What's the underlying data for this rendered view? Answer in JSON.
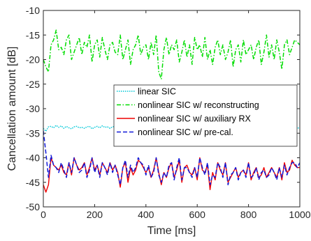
{
  "chart_data": {
    "type": "line",
    "title": "",
    "xlabel": "Time [ms]",
    "ylabel": "Cancellation amount [dB]",
    "xlim": [
      0,
      1000
    ],
    "ylim": [
      -50,
      -10
    ],
    "xticks": [
      0,
      200,
      400,
      600,
      800,
      1000
    ],
    "yticks": [
      -50,
      -45,
      -40,
      -35,
      -30,
      -25,
      -20,
      -15,
      -10
    ],
    "grid": false,
    "legend_position": "center-right",
    "sample_step_ms": 10,
    "series": [
      {
        "name": "linear SIC",
        "color": "#00c8d8",
        "dash": "dotted",
        "x_start": 0,
        "values": [
          -34.0,
          -34.6,
          -33.7,
          -33.6,
          -33.9,
          -33.4,
          -33.8,
          -33.5,
          -34.0,
          -33.6,
          -33.9,
          -34.1,
          -33.7,
          -33.6,
          -33.9,
          -33.8,
          -34.0,
          -33.7,
          -33.6,
          -34.1,
          -33.8,
          -33.6,
          -33.9,
          -33.5,
          -33.8,
          -33.7,
          -34.0,
          -33.7,
          -33.6,
          -33.9,
          -33.8,
          -33.6,
          -33.9,
          -34.1,
          -33.7,
          -33.6,
          -33.8,
          -33.9,
          -33.6,
          -33.8,
          -33.5,
          -33.9,
          -33.7,
          -33.6,
          -34.0,
          -33.7,
          -33.8,
          -33.6,
          -33.9,
          -33.7,
          -33.5,
          -33.8,
          -34.0,
          -33.7,
          -33.6,
          -33.9,
          -33.8,
          -33.6,
          -33.9,
          -34.1,
          -33.7,
          -33.6,
          -33.8,
          -33.9,
          -33.6,
          -33.8,
          -33.9,
          -33.7,
          -33.6,
          -34.0,
          -33.8,
          -33.7,
          -33.9,
          -33.6,
          -33.8,
          -34.0,
          -33.7,
          -33.9,
          -33.6,
          -33.8,
          -33.7,
          -33.9,
          -33.6,
          -34.0,
          -33.7,
          -33.8,
          -33.2,
          -33.9,
          -33.6,
          -33.8,
          -33.9,
          -33.7,
          -33.6,
          -33.9,
          -33.8,
          -33.7,
          -34.0,
          -33.6,
          -33.8,
          -33.9,
          -34.0
        ]
      },
      {
        "name": "nonlinear SIC w/ reconstructing",
        "color": "#00dd00",
        "dash": "dashdot",
        "x_start": 0,
        "values": [
          -20.0,
          -21.5,
          -22.5,
          -17.0,
          -16.0,
          -14.0,
          -18.0,
          -17.5,
          -19.0,
          -16.0,
          -15.0,
          -20.0,
          -18.5,
          -17.0,
          -15.5,
          -19.0,
          -16.5,
          -17.5,
          -15.0,
          -20.5,
          -17.0,
          -16.0,
          -19.5,
          -15.5,
          -18.0,
          -20.0,
          -17.0,
          -16.5,
          -18.5,
          -19.0,
          -15.0,
          -20.0,
          -18.0,
          -16.0,
          -21.0,
          -18.0,
          -17.0,
          -15.0,
          -19.0,
          -17.5,
          -17.0,
          -20.0,
          -16.5,
          -19.0,
          -15.0,
          -22.5,
          -24.0,
          -18.0,
          -15.5,
          -19.0,
          -17.0,
          -18.0,
          -16.0,
          -20.5,
          -18.5,
          -16.0,
          -19.5,
          -17.0,
          -21.0,
          -15.5,
          -18.0,
          -17.0,
          -19.5,
          -15.5,
          -20.0,
          -18.0,
          -21.0,
          -17.5,
          -16.0,
          -19.0,
          -17.0,
          -20.0,
          -18.5,
          -16.0,
          -21.5,
          -18.0,
          -17.0,
          -20.5,
          -16.0,
          -19.0,
          -18.0,
          -17.0,
          -20.0,
          -17.5,
          -16.0,
          -21.0,
          -18.5,
          -15.0,
          -19.5,
          -17.0,
          -20.0,
          -16.0,
          -18.5,
          -22.0,
          -17.0,
          -16.0,
          -19.0,
          -17.5,
          -16.0,
          -16.5,
          -17.0
        ]
      },
      {
        "name": "nonlinear SIC w/ auxiliary RX",
        "color": "#ee0000",
        "dash": "solid",
        "x_start": 0,
        "values": [
          -45.5,
          -47.0,
          -45.5,
          -40.0,
          -41.5,
          -42.0,
          -42.5,
          -41.5,
          -43.0,
          -43.5,
          -41.0,
          -43.5,
          -40.0,
          -41.5,
          -42.5,
          -42.0,
          -41.0,
          -43.5,
          -42.0,
          -40.0,
          -42.5,
          -41.5,
          -43.5,
          -41.0,
          -42.0,
          -43.0,
          -41.0,
          -42.5,
          -41.5,
          -43.0,
          -46.0,
          -42.0,
          -41.0,
          -45.0,
          -42.0,
          -43.5,
          -42.5,
          -40.5,
          -41.0,
          -42.0,
          -43.0,
          -42.0,
          -44.0,
          -42.5,
          -40.0,
          -43.0,
          -45.5,
          -43.0,
          -44.0,
          -42.0,
          -41.0,
          -44.0,
          -42.5,
          -40.5,
          -45.0,
          -42.0,
          -41.5,
          -43.0,
          -43.5,
          -42.0,
          -44.5,
          -40.0,
          -42.5,
          -43.0,
          -41.5,
          -46.5,
          -43.0,
          -44.5,
          -41.0,
          -42.5,
          -43.5,
          -41.0,
          -45.0,
          -44.0,
          -43.0,
          -42.0,
          -44.0,
          -43.0,
          -42.5,
          -43.5,
          -41.0,
          -44.5,
          -43.0,
          -42.0,
          -44.0,
          -43.5,
          -42.0,
          -44.0,
          -43.0,
          -42.0,
          -43.0,
          -44.0,
          -42.0,
          -44.5,
          -41.0,
          -43.0,
          -42.5,
          -40.5,
          -41.5,
          -42.0,
          -42.0
        ]
      },
      {
        "name": "nonlinear SIC w/ pre-cal.",
        "color": "#1018d8",
        "dash": "dashed",
        "x_start": 0,
        "values": [
          -34.5,
          -39.0,
          -44.0,
          -39.5,
          -41.5,
          -42.0,
          -43.0,
          -41.0,
          -42.5,
          -44.0,
          -41.0,
          -43.0,
          -40.0,
          -41.5,
          -43.0,
          -42.5,
          -41.0,
          -44.0,
          -42.5,
          -40.0,
          -43.0,
          -41.5,
          -44.0,
          -41.0,
          -42.0,
          -43.5,
          -41.0,
          -43.0,
          -41.5,
          -43.5,
          -45.5,
          -42.0,
          -40.5,
          -44.0,
          -41.5,
          -43.0,
          -42.0,
          -40.0,
          -41.0,
          -41.5,
          -43.5,
          -41.5,
          -44.0,
          -43.0,
          -40.0,
          -43.5,
          -45.0,
          -43.0,
          -44.0,
          -41.5,
          -41.0,
          -44.5,
          -42.0,
          -40.0,
          -44.5,
          -42.0,
          -42.0,
          -43.0,
          -44.0,
          -42.0,
          -44.0,
          -40.0,
          -42.0,
          -43.5,
          -41.0,
          -45.5,
          -43.5,
          -44.0,
          -41.0,
          -42.0,
          -44.0,
          -41.0,
          -45.5,
          -43.5,
          -43.0,
          -42.0,
          -44.5,
          -43.0,
          -42.5,
          -44.0,
          -41.0,
          -44.0,
          -43.5,
          -42.0,
          -44.5,
          -43.0,
          -42.5,
          -44.0,
          -43.5,
          -42.0,
          -43.0,
          -44.5,
          -42.0,
          -44.0,
          -41.5,
          -43.5,
          -42.0,
          -41.0,
          -41.0,
          -42.0,
          -41.0
        ]
      }
    ]
  }
}
